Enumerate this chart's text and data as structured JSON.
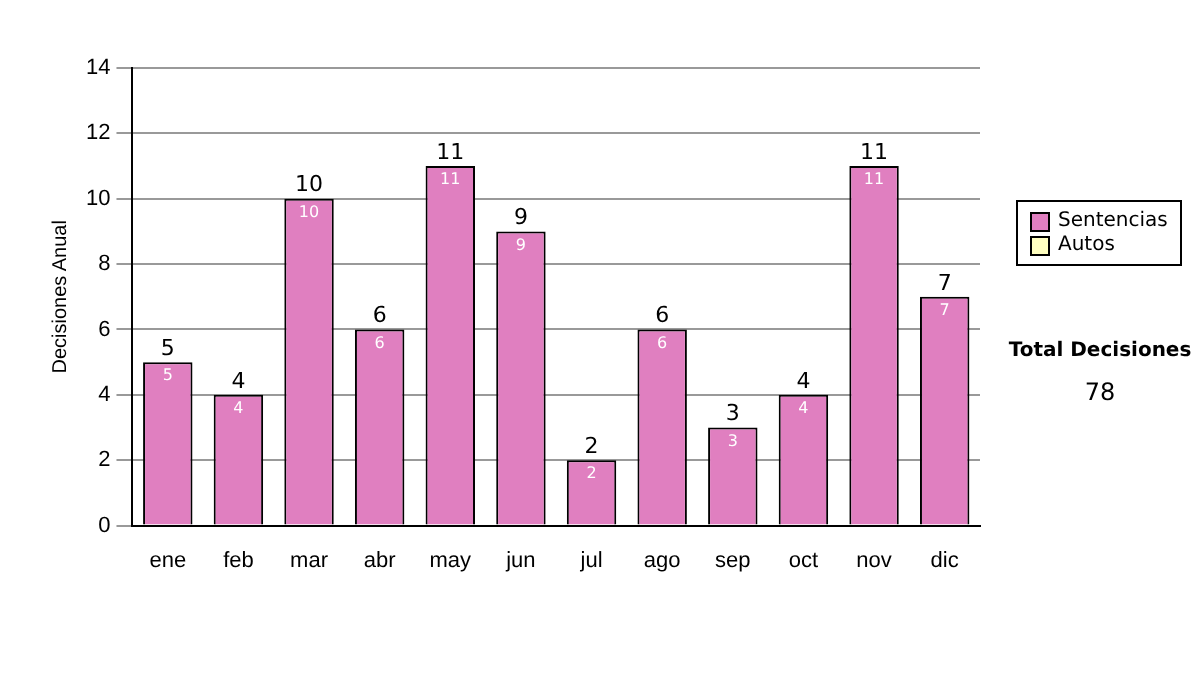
{
  "chart_data": {
    "type": "bar",
    "stacked": true,
    "ylabel": "Decisiones Anual",
    "categories": [
      "ene",
      "feb",
      "mar",
      "abr",
      "may",
      "jun",
      "jul",
      "ago",
      "sep",
      "oct",
      "nov",
      "dic"
    ],
    "series": [
      {
        "name": "Sentencias",
        "color": "#e07fc0",
        "values": [
          5,
          4,
          10,
          6,
          11,
          9,
          2,
          6,
          3,
          4,
          11,
          7
        ],
        "value_labels": [
          "5",
          "4",
          "10",
          "6",
          "11",
          "9",
          "2",
          "6",
          "3",
          "4",
          "11",
          "7"
        ]
      },
      {
        "name": "Autos",
        "color": "#ffffc0",
        "values": [
          0,
          0,
          0,
          0,
          0,
          0,
          0,
          0,
          0,
          0,
          0,
          0
        ]
      }
    ],
    "totals": [
      "5",
      "4",
      "10",
      "6",
      "11",
      "9",
      "2",
      "6",
      "3",
      "4",
      "11",
      "7"
    ],
    "ylim": [
      0,
      14
    ],
    "yticks": [
      0,
      2,
      4,
      6,
      8,
      10,
      12,
      14
    ],
    "grid": "y",
    "legend": "right",
    "annotations": [
      "Total Decisiones",
      "78"
    ]
  }
}
